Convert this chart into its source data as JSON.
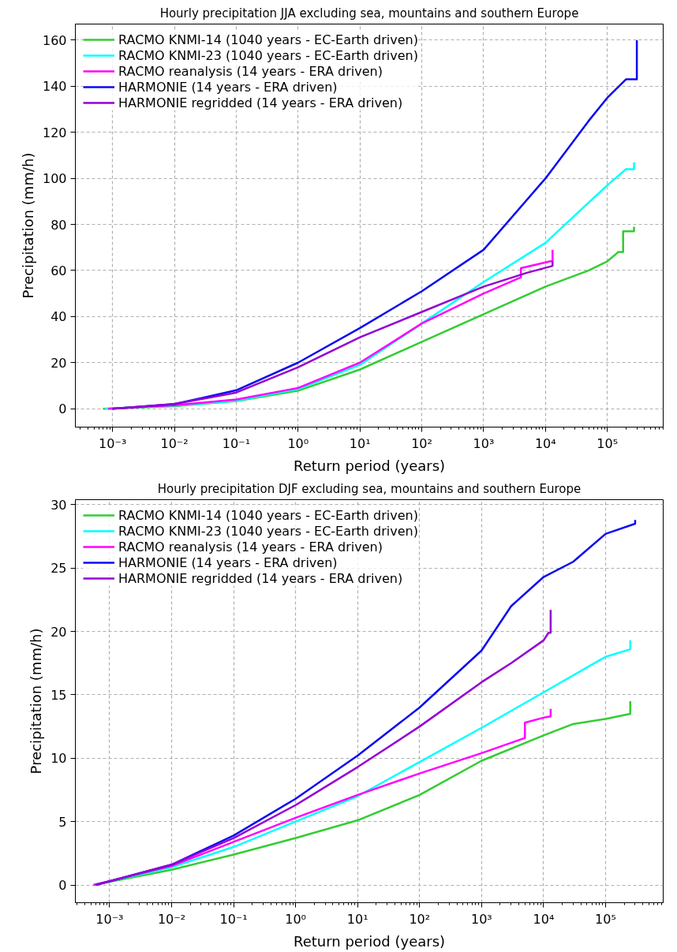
{
  "chart_data": [
    {
      "type": "line",
      "title": "Hourly precipitation JJA excluding sea, mountains and southern Europe",
      "xlabel": "Return period (years)",
      "ylabel": "Precipitation (mm/h)",
      "log": "x",
      "grid": true,
      "legend": "top left",
      "line_style": "solid",
      "xlim": [
        0.00025,
        800000
      ],
      "ylim": [
        -8,
        167
      ],
      "xticks": [
        {
          "value": 0.001,
          "label": "10⁻³"
        },
        {
          "value": 0.01,
          "label": "10⁻²"
        },
        {
          "value": 0.1,
          "label": "10⁻¹"
        },
        {
          "value": 1,
          "label": "10⁰"
        },
        {
          "value": 10,
          "label": "10¹"
        },
        {
          "value": 100,
          "label": "10²"
        },
        {
          "value": 1000,
          "label": "10³"
        },
        {
          "value": 10000,
          "label": "10⁴"
        },
        {
          "value": 100000,
          "label": "10⁵"
        }
      ],
      "yticks": [
        0,
        20,
        40,
        60,
        80,
        100,
        120,
        140,
        160
      ],
      "series": [
        {
          "name": "RACMO KNMI-14 (1040 years - EC-Earth driven)",
          "color": "#32cd32",
          "x": [
            0.0007,
            0.01,
            0.1,
            1,
            10,
            100,
            1000,
            10000,
            50000,
            100000,
            150000,
            180000,
            180000,
            270000,
            270000
          ],
          "values": [
            0,
            1.1,
            3.3,
            7.8,
            17,
            29,
            41,
            53,
            60,
            64,
            68,
            68,
            77,
            77,
            79
          ]
        },
        {
          "name": "RACMO KNMI-23 (1040 years - EC-Earth driven)",
          "color": "#00ffff",
          "x": [
            0.00075,
            0.01,
            0.1,
            1,
            10,
            100,
            1000,
            10000,
            30000,
            100000,
            200000,
            270000,
            270000
          ],
          "values": [
            0,
            1.3,
            3.5,
            8.5,
            19,
            37,
            55,
            72,
            84,
            97,
            104,
            104,
            107
          ]
        },
        {
          "name": "RACMO reanalysis (14 years - ERA driven)",
          "color": "#ff00ff",
          "x": [
            0.00085,
            0.01,
            0.1,
            1,
            10,
            100,
            1000,
            4000,
            4000,
            12000,
            13000,
            13000
          ],
          "values": [
            0,
            1.5,
            4,
            9,
            20,
            37,
            50,
            57,
            61,
            64,
            64,
            69
          ]
        },
        {
          "name": "HARMONIE (14 years - ERA driven)",
          "color": "#0b0bf0",
          "x": [
            0.001,
            0.01,
            0.1,
            1,
            10,
            100,
            1000,
            10000,
            50000,
            100000,
            200000,
            300000,
            300000
          ],
          "values": [
            0,
            2,
            8,
            20,
            35,
            51,
            69,
            100,
            125,
            135,
            143,
            143,
            160
          ]
        },
        {
          "name": "HARMONIE regridded (14 years - ERA driven)",
          "color": "#9400d3",
          "x": [
            0.001,
            0.01,
            0.1,
            1,
            10,
            100,
            1000,
            5000,
            13000,
            13000
          ],
          "values": [
            0,
            2,
            7,
            18,
            31,
            42,
            53,
            59,
            62,
            64
          ]
        }
      ]
    },
    {
      "type": "line",
      "title": "Hourly precipitation DJF excluding sea, mountains and southern Europe",
      "xlabel": "Return period (years)",
      "ylabel": "Precipitation (mm/h)",
      "log": "x",
      "grid": true,
      "legend": "top left",
      "line_style": "solid",
      "xlim": [
        0.00028,
        850000
      ],
      "ylim": [
        -1.4,
        30.4
      ],
      "xticks": [
        {
          "value": 0.001,
          "label": "10⁻³"
        },
        {
          "value": 0.01,
          "label": "10⁻²"
        },
        {
          "value": 0.1,
          "label": "10⁻¹"
        },
        {
          "value": 1,
          "label": "10⁰"
        },
        {
          "value": 10,
          "label": "10¹"
        },
        {
          "value": 100,
          "label": "10²"
        },
        {
          "value": 1000,
          "label": "10³"
        },
        {
          "value": 10000,
          "label": "10⁴"
        },
        {
          "value": 100000,
          "label": "10⁵"
        }
      ],
      "yticks": [
        0,
        5,
        10,
        15,
        20,
        25,
        30
      ],
      "series": [
        {
          "name": "RACMO KNMI-14 (1040 years - EC-Earth driven)",
          "color": "#32cd32",
          "x": [
            0.00055,
            0.01,
            0.1,
            1,
            10,
            100,
            1000,
            10000,
            30000,
            100000,
            250000,
            250000
          ],
          "values": [
            0,
            1.2,
            2.4,
            3.7,
            5.1,
            7.1,
            9.8,
            11.8,
            12.7,
            13.1,
            13.5,
            14.5
          ]
        },
        {
          "name": "RACMO KNMI-23 (1040 years - EC-Earth driven)",
          "color": "#00ffff",
          "x": [
            0.00055,
            0.01,
            0.1,
            1,
            10,
            100,
            1000,
            10000,
            100000,
            250000,
            250000
          ],
          "values": [
            0,
            1.4,
            3,
            5,
            7,
            9.7,
            12.4,
            15.2,
            18,
            18.6,
            19.3
          ]
        },
        {
          "name": "RACMO reanalysis (14 years - ERA driven)",
          "color": "#ff00ff",
          "x": [
            0.00055,
            0.01,
            0.1,
            1,
            10,
            100,
            1000,
            5000,
            5000,
            10000,
            13000,
            13000
          ],
          "values": [
            0,
            1.5,
            3.4,
            5.3,
            7.1,
            8.8,
            10.4,
            11.6,
            12.8,
            13.2,
            13.3,
            13.9
          ]
        },
        {
          "name": "HARMONIE (14 years - ERA driven)",
          "color": "#0b0bf0",
          "x": [
            0.0006,
            0.01,
            0.1,
            1,
            10,
            100,
            1000,
            3000,
            10000,
            30000,
            100000,
            300000,
            300000
          ],
          "values": [
            0,
            1.6,
            3.9,
            6.8,
            10.2,
            14,
            18.5,
            22,
            24.3,
            25.5,
            27.7,
            28.5,
            28.8
          ]
        },
        {
          "name": "HARMONIE regridded (14 years - ERA driven)",
          "color": "#9400d3",
          "x": [
            0.0006,
            0.01,
            0.1,
            1,
            10,
            100,
            1000,
            3000,
            10000,
            12000,
            13000,
            13000
          ],
          "values": [
            0,
            1.6,
            3.7,
            6.3,
            9.3,
            12.5,
            16,
            17.5,
            19.3,
            19.9,
            19.9,
            21.7
          ]
        }
      ]
    }
  ]
}
